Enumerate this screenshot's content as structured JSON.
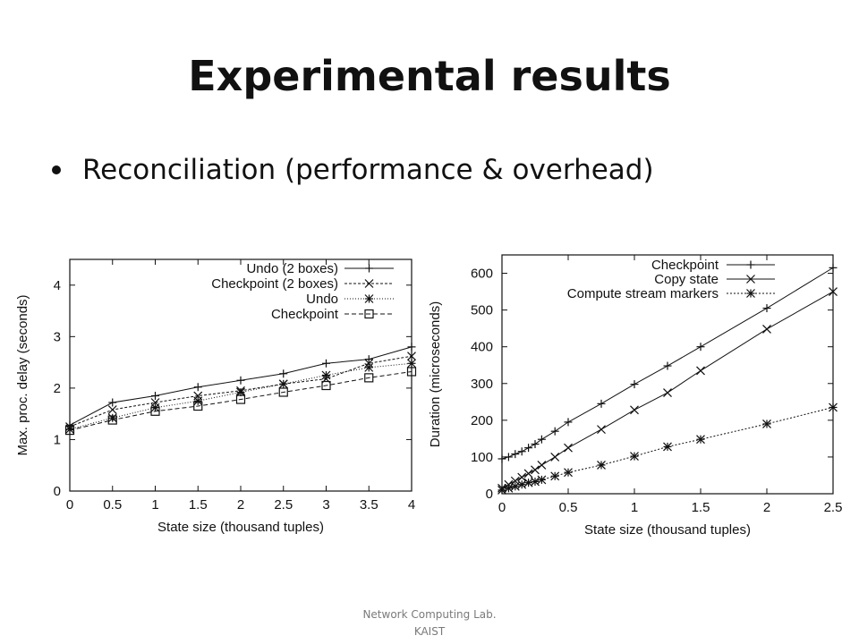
{
  "slide": {
    "title": "Experimental results",
    "bullet": "Reconciliation (performance & overhead)",
    "footer_line1": "Network Computing Lab.",
    "footer_line2": "KAIST"
  },
  "chart_data": [
    {
      "type": "line",
      "xlabel": "State size (thousand tuples)",
      "ylabel": "Max. proc. delay (seconds)",
      "xlim": [
        0,
        4
      ],
      "ylim": [
        0,
        4.5
      ],
      "xticks": [
        0,
        0.5,
        1,
        1.5,
        2,
        2.5,
        3,
        3.5,
        4
      ],
      "xtick_labels": [
        "0",
        "0.5",
        "1",
        "1.5",
        "2",
        "2.5",
        "3",
        "3.5",
        "4"
      ],
      "yticks": [
        0,
        1,
        2,
        3,
        4
      ],
      "ytick_labels": [
        "0",
        "1",
        "2",
        "3",
        "4"
      ],
      "grid": false,
      "legend_position": "top-right",
      "series": [
        {
          "name": "Undo (2 boxes)",
          "marker": "plus",
          "dash": "",
          "x": [
            0,
            0.5,
            1,
            1.5,
            2,
            2.5,
            3,
            3.5,
            4
          ],
          "y": [
            1.28,
            1.72,
            1.85,
            2.02,
            2.15,
            2.28,
            2.48,
            2.56,
            2.8
          ]
        },
        {
          "name": "Checkpoint (2 boxes)",
          "marker": "x",
          "dash": "3,2",
          "x": [
            0,
            0.5,
            1,
            1.5,
            2,
            2.5,
            3,
            3.5,
            4
          ],
          "y": [
            1.25,
            1.58,
            1.72,
            1.85,
            1.95,
            2.08,
            2.18,
            2.48,
            2.62
          ]
        },
        {
          "name": "Undo",
          "marker": "star",
          "dash": "1,2",
          "x": [
            0,
            0.5,
            1,
            1.5,
            2,
            2.5,
            3,
            3.5,
            4
          ],
          "y": [
            1.2,
            1.42,
            1.62,
            1.75,
            1.92,
            2.08,
            2.25,
            2.4,
            2.48
          ]
        },
        {
          "name": "Checkpoint",
          "marker": "square",
          "dash": "5,3",
          "x": [
            0,
            0.5,
            1,
            1.5,
            2,
            2.5,
            3,
            3.5,
            4
          ],
          "y": [
            1.18,
            1.38,
            1.55,
            1.65,
            1.78,
            1.92,
            2.05,
            2.2,
            2.32
          ]
        }
      ]
    },
    {
      "type": "line",
      "xlabel": "State size (thousand tuples)",
      "ylabel": "Duration (microseconds)",
      "xlim": [
        0,
        2.5
      ],
      "ylim": [
        0,
        650
      ],
      "xticks": [
        0,
        0.5,
        1,
        1.5,
        2,
        2.5
      ],
      "xtick_labels": [
        "0",
        "0.5",
        "1",
        "1.5",
        "2",
        "2.5"
      ],
      "yticks": [
        0,
        100,
        200,
        300,
        400,
        500,
        600
      ],
      "ytick_labels": [
        "0",
        "100",
        "200",
        "300",
        "400",
        "500",
        "600"
      ],
      "grid": false,
      "legend_position": "top-right",
      "series": [
        {
          "name": "Checkpoint",
          "marker": "plus",
          "dash": "",
          "x": [
            0,
            0.05,
            0.1,
            0.15,
            0.2,
            0.25,
            0.3,
            0.4,
            0.5,
            0.75,
            1.0,
            1.25,
            1.5,
            2.0,
            2.5
          ],
          "y": [
            95,
            100,
            108,
            115,
            125,
            135,
            148,
            170,
            195,
            245,
            298,
            348,
            400,
            505,
            615
          ]
        },
        {
          "name": "Copy state",
          "marker": "x",
          "dash": "",
          "x": [
            0,
            0.05,
            0.1,
            0.15,
            0.2,
            0.25,
            0.3,
            0.4,
            0.5,
            0.75,
            1.0,
            1.25,
            1.5,
            2.0,
            2.5
          ],
          "y": [
            15,
            25,
            35,
            45,
            55,
            65,
            78,
            100,
            125,
            175,
            228,
            275,
            335,
            448,
            550
          ]
        },
        {
          "name": "Compute stream markers",
          "marker": "star",
          "dash": "2,2",
          "x": [
            0,
            0.05,
            0.1,
            0.15,
            0.2,
            0.25,
            0.3,
            0.4,
            0.5,
            0.75,
            1.0,
            1.25,
            1.5,
            2.0,
            2.5
          ],
          "y": [
            10,
            15,
            20,
            25,
            30,
            33,
            38,
            48,
            58,
            78,
            102,
            128,
            148,
            190,
            235
          ]
        }
      ]
    }
  ]
}
